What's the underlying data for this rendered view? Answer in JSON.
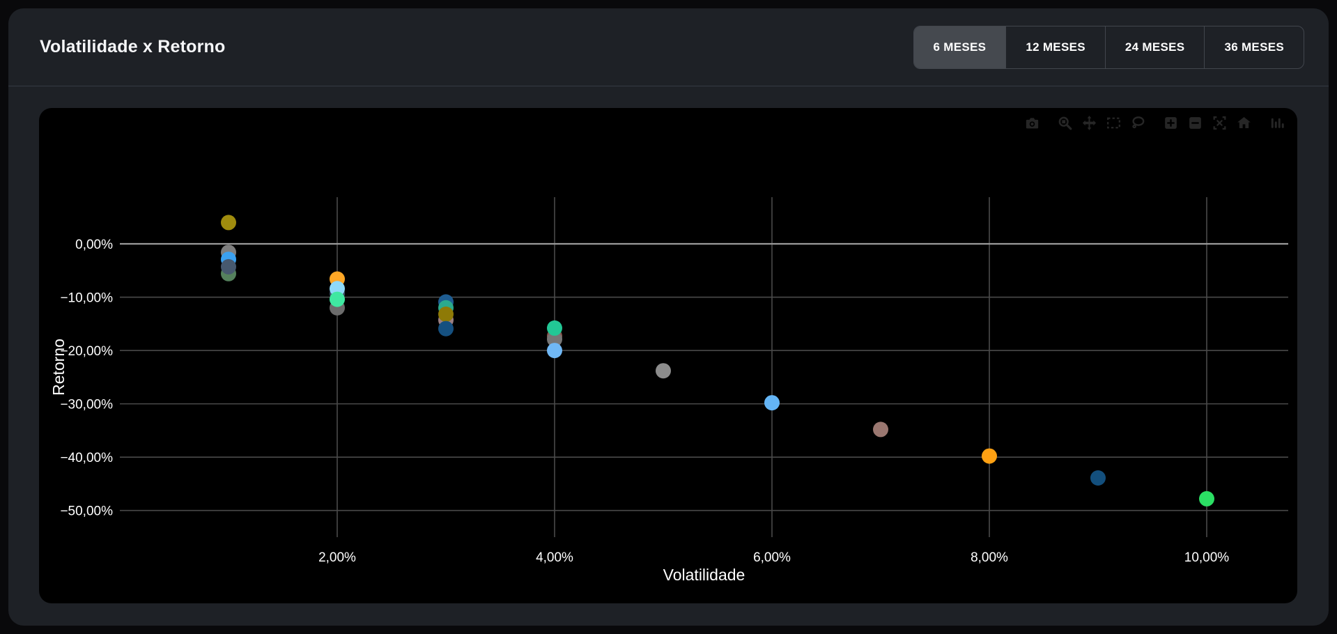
{
  "header": {
    "title": "Volatilidade x Retorno"
  },
  "tabs": [
    {
      "id": "6-meses",
      "label": "6 MESES",
      "selected": true
    },
    {
      "id": "12-meses",
      "label": "12 MESES",
      "selected": false
    },
    {
      "id": "24-meses",
      "label": "24 MESES",
      "selected": false
    },
    {
      "id": "36-meses",
      "label": "36 MESES",
      "selected": false
    }
  ],
  "modebar": {
    "icons": [
      {
        "name": "camera-icon"
      },
      {
        "name": "zoom-icon"
      },
      {
        "name": "pan-icon"
      },
      {
        "name": "box-select-icon"
      },
      {
        "name": "lasso-select-icon"
      },
      {
        "name": "zoom-in-icon"
      },
      {
        "name": "zoom-out-icon"
      },
      {
        "name": "autoscale-icon"
      },
      {
        "name": "reset-axes-icon"
      },
      {
        "name": "plotly-logo-icon"
      }
    ],
    "groups": [
      [
        "camera-icon"
      ],
      [
        "zoom-icon",
        "pan-icon",
        "box-select-icon",
        "lasso-select-icon"
      ],
      [
        "zoom-in-icon",
        "zoom-out-icon",
        "autoscale-icon",
        "reset-axes-icon"
      ],
      [
        "plotly-logo-icon"
      ]
    ]
  },
  "chart_data": {
    "type": "scatter",
    "title": "",
    "xlabel": "Volatilidade",
    "ylabel": "Retorno",
    "xlim": [
      0,
      10.75
    ],
    "ylim": [
      -55,
      8.75
    ],
    "grid": true,
    "x_ticks": [
      {
        "value": 2,
        "label": "2,00%"
      },
      {
        "value": 4,
        "label": "4,00%"
      },
      {
        "value": 6,
        "label": "6,00%"
      },
      {
        "value": 8,
        "label": "8,00%"
      },
      {
        "value": 10,
        "label": "10,00%"
      }
    ],
    "y_ticks": [
      {
        "value": 0,
        "label": "0,00%"
      },
      {
        "value": -10,
        "label": "−10,00%"
      },
      {
        "value": -20,
        "label": "−20,00%"
      },
      {
        "value": -30,
        "label": "−30,00%"
      },
      {
        "value": -40,
        "label": "−40,00%"
      },
      {
        "value": -50,
        "label": "−50,00%"
      }
    ],
    "marker_radius": 11,
    "points": [
      {
        "x": 1.0,
        "y": 4.0,
        "color": "#a08c0e"
      },
      {
        "x": 1.0,
        "y": -1.6,
        "color": "#7f7f7f"
      },
      {
        "x": 1.0,
        "y": -2.9,
        "color": "#3ba1f0"
      },
      {
        "x": 1.0,
        "y": -5.6,
        "color": "#55815d"
      },
      {
        "x": 1.0,
        "y": -4.3,
        "color": "#47596f"
      },
      {
        "x": 2.0,
        "y": -6.6,
        "color": "#ffa726"
      },
      {
        "x": 2.0,
        "y": -9.3,
        "color": "#3d5066"
      },
      {
        "x": 2.0,
        "y": -8.4,
        "color": "#8ed9f8"
      },
      {
        "x": 2.0,
        "y": -12.0,
        "color": "#6c6c6c"
      },
      {
        "x": 2.0,
        "y": -10.4,
        "color": "#3fe8a1"
      },
      {
        "x": 3.0,
        "y": -10.9,
        "color": "#1e5d92"
      },
      {
        "x": 3.0,
        "y": -12.0,
        "color": "#2baa8c"
      },
      {
        "x": 3.0,
        "y": -14.3,
        "color": "#9b7f82"
      },
      {
        "x": 3.0,
        "y": -13.2,
        "color": "#8e7a06"
      },
      {
        "x": 3.0,
        "y": -15.9,
        "color": "#155080"
      },
      {
        "x": 4.0,
        "y": -17.3,
        "color": "#8a564e"
      },
      {
        "x": 4.0,
        "y": -17.9,
        "color": "#767676"
      },
      {
        "x": 4.0,
        "y": -15.8,
        "color": "#22c795"
      },
      {
        "x": 4.0,
        "y": -20.0,
        "color": "#70b8f5"
      },
      {
        "x": 5.0,
        "y": -23.8,
        "color": "#8c8c8c"
      },
      {
        "x": 6.0,
        "y": -29.8,
        "color": "#64b5f6"
      },
      {
        "x": 7.0,
        "y": -34.8,
        "color": "#9a7770"
      },
      {
        "x": 8.0,
        "y": -39.8,
        "color": "#ffa113"
      },
      {
        "x": 9.0,
        "y": -43.9,
        "color": "#134f7d"
      },
      {
        "x": 10.0,
        "y": -47.8,
        "color": "#2bdf64"
      }
    ]
  },
  "theme": {
    "page_bg": "#09090b",
    "card_bg": "#1e2126",
    "chart_bg": "#000000",
    "grid_color": "#4a4a4a",
    "zero_line_color": "#9a9a9a",
    "text_color": "#ffffff",
    "divider_color": "#353b43",
    "tab_selected_bg": "#45494f",
    "tab_border_color": "#42464d",
    "modebar_icon_color": "#262626"
  }
}
